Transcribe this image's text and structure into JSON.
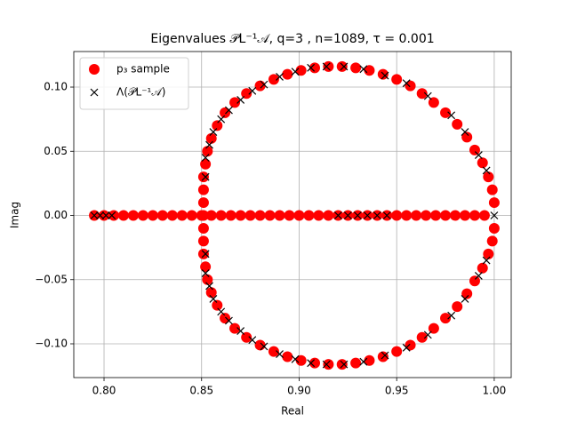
{
  "chart_data": {
    "type": "scatter",
    "title": "Eigenvalues 𝒫L⁻¹𝒜, q=3 , n=1089, τ = 0.001",
    "xlabel": "Real",
    "ylabel": "Imag",
    "xlim": [
      0.7845,
      1.0087
    ],
    "ylim": [
      -0.1263,
      0.1277
    ],
    "xticks": [
      {
        "value": 0.8,
        "label": "0.80"
      },
      0.85,
      {
        "value": 0.9,
        "label": "0.90"
      },
      0.95,
      {
        "value": 1.0,
        "label": "1.00"
      }
    ],
    "yticks": [
      {
        "value": -0.1,
        "label": "−0.10"
      },
      {
        "value": -0.05,
        "label": "−0.05"
      },
      {
        "value": 0,
        "label": "0.00"
      },
      0.05,
      {
        "value": 0.1,
        "label": "0.10"
      }
    ],
    "grid": true,
    "legend_position": "upper left",
    "series": [
      {
        "name": "p₃ sample",
        "color": "#ff0000",
        "marker": "o",
        "x": [
          0.851,
          0.851,
          0.851,
          0.851,
          0.852,
          0.853,
          0.855,
          0.858,
          0.862,
          0.867,
          0.873,
          0.88,
          0.887,
          0.894,
          0.901,
          0.908,
          0.915,
          0.922,
          0.929,
          0.936,
          0.943,
          0.95,
          0.957,
          0.963,
          0.969,
          0.975,
          0.981,
          0.986,
          0.99,
          0.994,
          0.997,
          0.999,
          1.0,
          0.851,
          0.851,
          0.851,
          0.852,
          0.853,
          0.855,
          0.858,
          0.862,
          0.867,
          0.873,
          0.88,
          0.887,
          0.894,
          0.901,
          0.908,
          0.915,
          0.922,
          0.929,
          0.936,
          0.943,
          0.95,
          0.957,
          0.963,
          0.969,
          0.975,
          0.981,
          0.986,
          0.99,
          0.994,
          0.997,
          0.999,
          1.0,
          0.795,
          0.8,
          0.805,
          0.81,
          0.815,
          0.82,
          0.825,
          0.83,
          0.835,
          0.84,
          0.845,
          0.85,
          0.855,
          0.86,
          0.865,
          0.87,
          0.875,
          0.88,
          0.885,
          0.89,
          0.895,
          0.9,
          0.905,
          0.91,
          0.915,
          0.92,
          0.925,
          0.93,
          0.935,
          0.94,
          0.945,
          0.95,
          0.955,
          0.96,
          0.965,
          0.97,
          0.975,
          0.98,
          0.985,
          0.99,
          0.995
        ],
        "y": [
          0,
          0.01,
          0.02,
          0.03,
          0.04,
          0.05,
          0.06,
          0.07,
          0.08,
          0.088,
          0.095,
          0.101,
          0.106,
          0.11,
          0.113,
          0.115,
          0.116,
          0.116,
          0.115,
          0.113,
          0.11,
          0.106,
          0.101,
          0.095,
          0.088,
          0.08,
          0.071,
          0.061,
          0.051,
          0.041,
          0.03,
          0.02,
          0.01,
          -0.01,
          -0.02,
          -0.03,
          -0.04,
          -0.05,
          -0.06,
          -0.07,
          -0.08,
          -0.088,
          -0.095,
          -0.101,
          -0.106,
          -0.11,
          -0.113,
          -0.115,
          -0.116,
          -0.116,
          -0.115,
          -0.113,
          -0.11,
          -0.106,
          -0.101,
          -0.095,
          -0.088,
          -0.08,
          -0.071,
          -0.061,
          -0.051,
          -0.041,
          -0.03,
          -0.02,
          -0.01,
          0,
          0,
          0,
          0,
          0,
          0,
          0,
          0,
          0,
          0,
          0,
          0,
          0,
          0,
          0,
          0,
          0,
          0,
          0,
          0,
          0,
          0,
          0,
          0,
          0,
          0,
          0,
          0,
          0,
          0,
          0,
          0,
          0,
          0,
          0,
          0,
          0,
          0,
          0,
          0,
          0
        ]
      },
      {
        "name": "Λ(𝒫L⁻¹𝒜)",
        "color": "#000000",
        "marker": "x",
        "x": [
          0.852,
          0.852,
          0.854,
          0.856,
          0.86,
          0.864,
          0.87,
          0.876,
          0.882,
          0.89,
          0.898,
          0.906,
          0.914,
          0.923,
          0.933,
          0.944,
          0.955,
          0.966,
          0.978,
          0.985,
          0.992,
          0.996,
          0.852,
          0.852,
          0.854,
          0.856,
          0.86,
          0.864,
          0.87,
          0.876,
          0.882,
          0.89,
          0.898,
          0.906,
          0.914,
          0.923,
          0.933,
          0.944,
          0.955,
          0.966,
          0.978,
          0.985,
          0.992,
          0.996,
          0.795,
          0.798,
          0.801,
          0.804,
          0.92,
          0.925,
          0.93,
          0.935,
          0.94,
          0.945,
          1.0
        ],
        "y": [
          0.03,
          0.045,
          0.055,
          0.065,
          0.075,
          0.082,
          0.09,
          0.097,
          0.102,
          0.108,
          0.112,
          0.115,
          0.116,
          0.116,
          0.114,
          0.109,
          0.103,
          0.093,
          0.078,
          0.065,
          0.047,
          0.035,
          -0.03,
          -0.045,
          -0.055,
          -0.065,
          -0.075,
          -0.082,
          -0.09,
          -0.097,
          -0.102,
          -0.108,
          -0.112,
          -0.115,
          -0.116,
          -0.116,
          -0.114,
          -0.109,
          -0.103,
          -0.093,
          -0.078,
          -0.065,
          -0.047,
          -0.035,
          0,
          0,
          0,
          0,
          0,
          0,
          0,
          0,
          0,
          0,
          0
        ]
      }
    ]
  }
}
